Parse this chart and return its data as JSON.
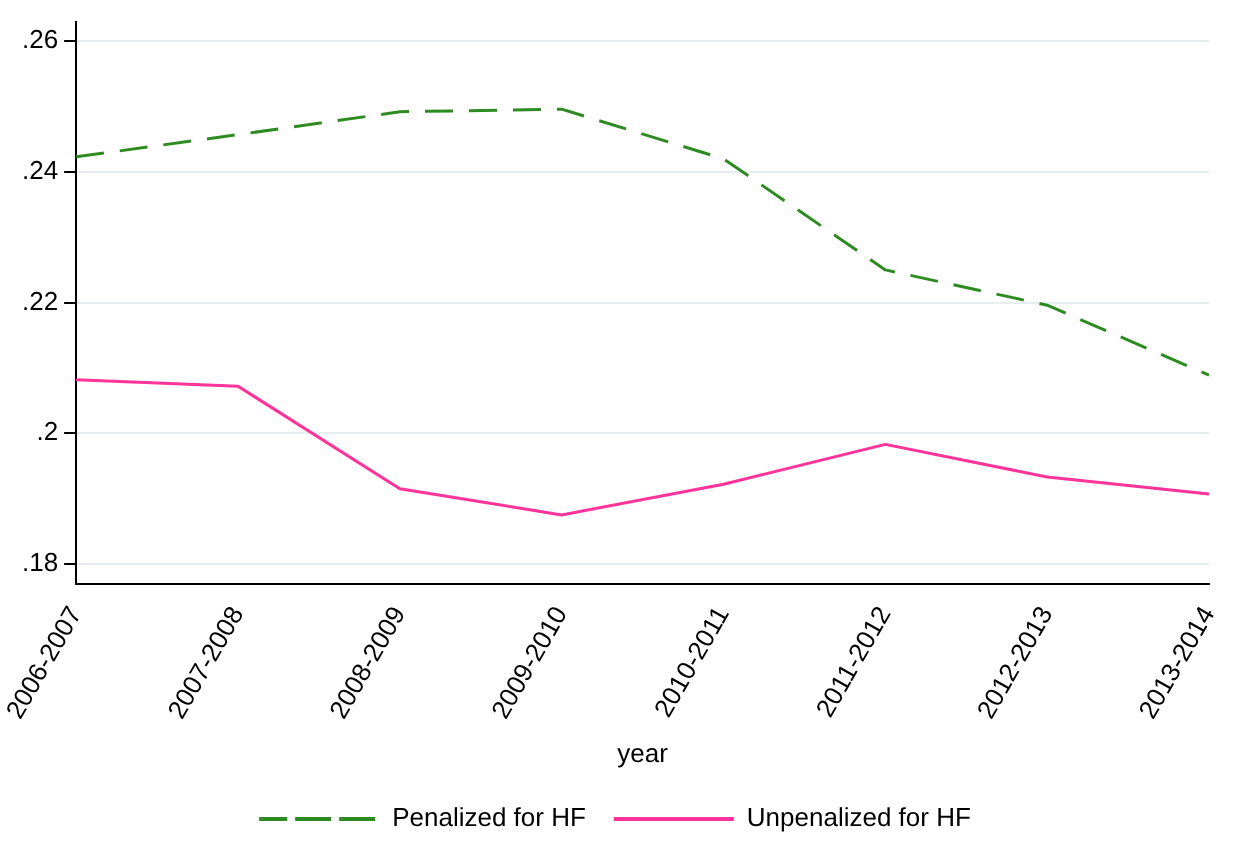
{
  "chart_data": {
    "type": "line",
    "xlabel": "year",
    "categories": [
      "2006-2007",
      "2007-2008",
      "2008-2009",
      "2009-2010",
      "2010-2011",
      "2011-2012",
      "2012-2013",
      "2013-2014"
    ],
    "series": [
      {
        "name": "Penalized for HF",
        "color": "#2e8b22",
        "line_style": "dashed",
        "values": [
          0.2423,
          0.2457,
          0.2492,
          0.2496,
          0.242,
          0.225,
          0.2196,
          0.2089
        ]
      },
      {
        "name": "Unpenalized for HF",
        "color": "#ff3399",
        "line_style": "solid",
        "values": [
          0.2082,
          0.2072,
          0.1915,
          0.1875,
          0.1922,
          0.1983,
          0.1933,
          0.1907
        ]
      }
    ],
    "ylim": [
      0.177,
      0.263
    ],
    "yticks": [
      {
        "value": 0.18,
        "label": ".18"
      },
      {
        "value": 0.2,
        "label": ".2"
      },
      {
        "value": 0.22,
        "label": ".22"
      },
      {
        "value": 0.24,
        "label": ".24"
      },
      {
        "value": 0.26,
        "label": ".26"
      }
    ],
    "grid": "y",
    "legend": "bottom",
    "marker": "none"
  }
}
